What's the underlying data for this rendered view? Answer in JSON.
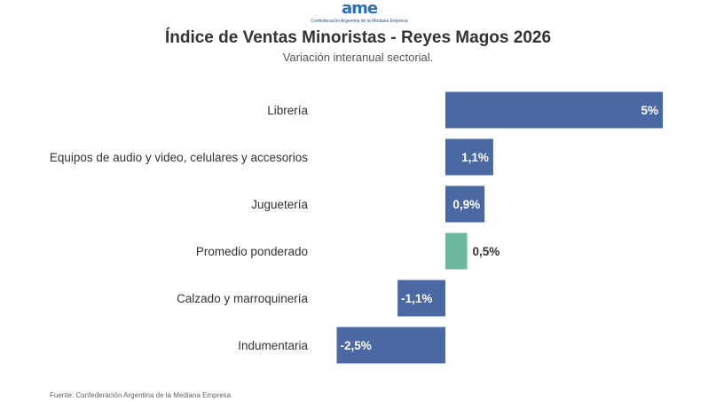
{
  "logo": {
    "mark": "ame",
    "text": "Confederación Argentina de la Mediana Empresa"
  },
  "chart_data": {
    "type": "bar",
    "orientation": "horizontal",
    "title": "Índice de Ventas Minoristas - Reyes Magos 2026",
    "subtitle": "Variación interanual sectorial.",
    "categories": [
      "Librería",
      "Equipos de audio y video, celulares y accesorios",
      "Juguetería",
      "Promedio ponderado",
      "Calzado y marroquinería",
      "Indumentaria"
    ],
    "values": [
      5,
      1.1,
      0.9,
      0.5,
      -1.1,
      -2.5
    ],
    "data_labels": [
      "5%",
      "1,1%",
      "0,9%",
      "0,5%",
      "-1,1%",
      "-2,5%"
    ],
    "highlight": "Promedio ponderado",
    "colors": {
      "bar": "#4a68a3",
      "highlight": "#6bb8a0"
    },
    "grid": false,
    "source": "Fuente: Confederación Argentina de la Mediana Empresa"
  }
}
